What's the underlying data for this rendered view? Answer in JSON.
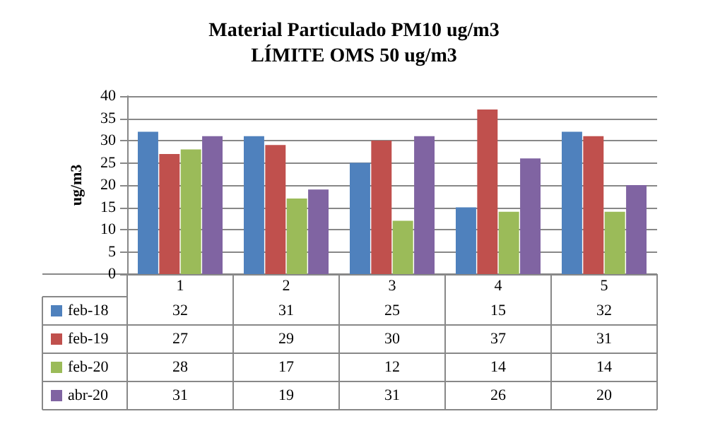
{
  "chart_data": {
    "type": "bar",
    "title": "Material Particulado PM10 ug/m3\nLÍMITE OMS 50 ug/m3",
    "ylabel": "ug/m3",
    "categories": [
      "1",
      "2",
      "3",
      "4",
      "5"
    ],
    "series": [
      {
        "name": "feb-18",
        "color": "#4f81bd",
        "values": [
          32,
          31,
          25,
          15,
          32
        ]
      },
      {
        "name": "feb-19",
        "color": "#c0504d",
        "values": [
          27,
          29,
          30,
          37,
          31
        ]
      },
      {
        "name": "feb-20",
        "color": "#9bbb59",
        "values": [
          28,
          17,
          12,
          14,
          14
        ]
      },
      {
        "name": "abr-20",
        "color": "#8064a2",
        "values": [
          31,
          19,
          31,
          26,
          20
        ]
      }
    ],
    "ylim": [
      0,
      40
    ],
    "yticks": [
      0,
      5,
      10,
      15,
      20,
      25,
      30,
      35,
      40
    ],
    "grid": "y",
    "legend": "bottom",
    "data_labels": true
  }
}
